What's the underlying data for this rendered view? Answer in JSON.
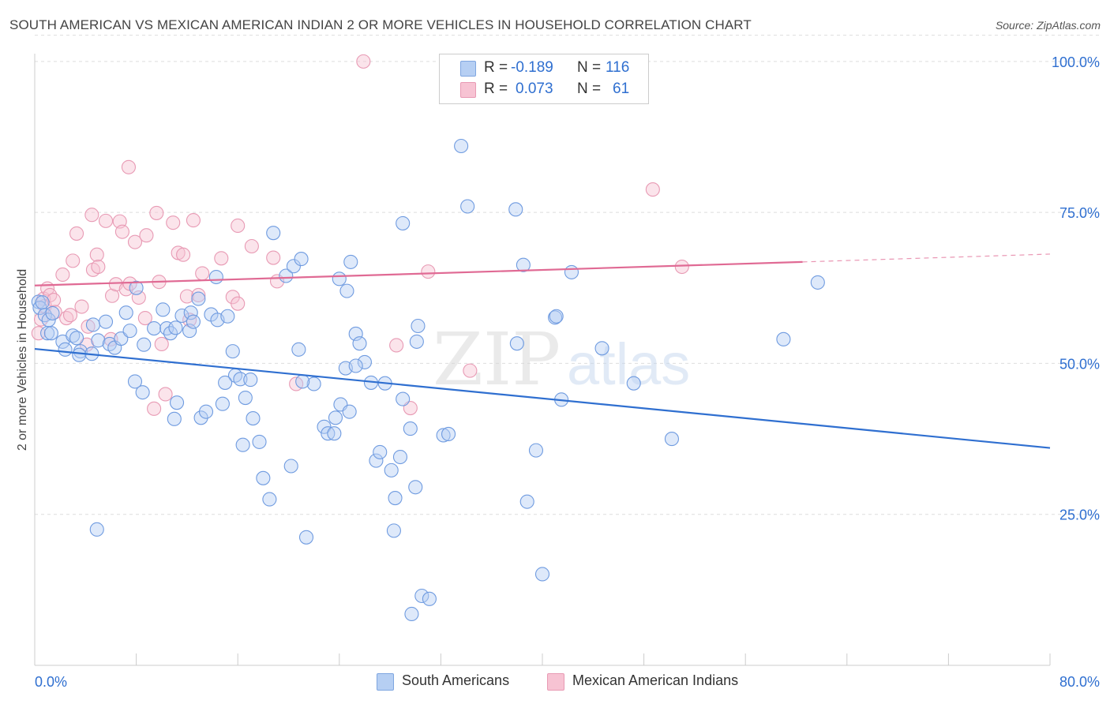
{
  "title": "SOUTH AMERICAN VS MEXICAN AMERICAN INDIAN 2 OR MORE VEHICLES IN HOUSEHOLD CORRELATION CHART",
  "source": "Source: ZipAtlas.com",
  "colors": {
    "blue": "#2f6fd0",
    "pink": "#e06a94",
    "blue_fill": "#b6cff3",
    "pink_fill": "#f7c3d3"
  },
  "legend": {
    "rows": [
      {
        "r_label": "R =",
        "r_value": "-0.189",
        "n_label": "N =",
        "n_value": "116"
      },
      {
        "r_label": "R =",
        "r_value": "0.073",
        "n_label": "N =",
        "n_value": "61"
      }
    ]
  },
  "watermark": {
    "part1": "ZIP",
    "part2": "atlas"
  },
  "chart_data": {
    "type": "scatter",
    "title": "SOUTH AMERICAN VS MEXICAN AMERICAN INDIAN 2 OR MORE VEHICLES IN HOUSEHOLD CORRELATION CHART",
    "xlabel": "",
    "ylabel": "2 or more Vehicles in Household",
    "xlim": [
      0,
      80
    ],
    "ylim": [
      0,
      105
    ],
    "x_tick_labels": [
      "0.0%",
      "80.0%"
    ],
    "y_ticks": [
      25,
      50,
      75,
      100
    ],
    "y_tick_labels": [
      "25.0%",
      "50.0%",
      "75.0%",
      "100.0%"
    ],
    "grid": true,
    "series": [
      {
        "name": "South Americans",
        "color": "#2f6fd0",
        "fill": "#b6cff3",
        "trend": {
          "x": [
            0,
            80
          ],
          "y": [
            52.4,
            36.0
          ]
        },
        "points": [
          [
            0.3,
            60.2
          ],
          [
            0.4,
            59.2
          ],
          [
            0.6,
            60.1
          ],
          [
            0.8,
            58.0
          ],
          [
            1.1,
            57.2
          ],
          [
            1.4,
            58.3
          ],
          [
            1.0,
            55.0
          ],
          [
            1.3,
            55.0
          ],
          [
            2.2,
            53.6
          ],
          [
            2.4,
            52.3
          ],
          [
            3.0,
            54.6
          ],
          [
            3.3,
            54.2
          ],
          [
            3.6,
            52.0
          ],
          [
            3.5,
            51.4
          ],
          [
            4.5,
            51.6
          ],
          [
            4.6,
            56.4
          ],
          [
            5.0,
            53.8
          ],
          [
            5.6,
            56.9
          ],
          [
            5.9,
            53.2
          ],
          [
            6.3,
            52.6
          ],
          [
            6.8,
            54.1
          ],
          [
            7.2,
            58.4
          ],
          [
            7.5,
            55.4
          ],
          [
            8.0,
            62.5
          ],
          [
            8.6,
            53.1
          ],
          [
            9.4,
            55.8
          ],
          [
            10.1,
            58.9
          ],
          [
            10.4,
            55.8
          ],
          [
            10.7,
            55.0
          ],
          [
            11.1,
            55.9
          ],
          [
            11.6,
            57.9
          ],
          [
            12.2,
            55.4
          ],
          [
            12.3,
            58.4
          ],
          [
            12.5,
            56.9
          ],
          [
            12.9,
            60.7
          ],
          [
            14.3,
            64.3
          ],
          [
            13.9,
            58.1
          ],
          [
            14.4,
            57.2
          ],
          [
            15.2,
            57.8
          ],
          [
            15.6,
            52.0
          ],
          [
            15.8,
            48.0
          ],
          [
            16.2,
            47.4
          ],
          [
            16.6,
            44.3
          ],
          [
            17.0,
            47.3
          ],
          [
            17.2,
            40.9
          ],
          [
            18.8,
            71.6
          ],
          [
            19.8,
            64.5
          ],
          [
            20.4,
            66.1
          ],
          [
            21.0,
            67.3
          ],
          [
            20.8,
            52.3
          ],
          [
            22.0,
            46.6
          ],
          [
            22.8,
            39.5
          ],
          [
            23.1,
            38.4
          ],
          [
            23.6,
            38.4
          ],
          [
            24.1,
            43.2
          ],
          [
            24.8,
            42.0
          ],
          [
            24.0,
            64.0
          ],
          [
            24.5,
            49.2
          ],
          [
            24.9,
            66.8
          ],
          [
            25.3,
            54.9
          ],
          [
            25.6,
            53.3
          ],
          [
            26.0,
            50.2
          ],
          [
            25.3,
            49.6
          ],
          [
            26.5,
            46.8
          ],
          [
            26.9,
            33.9
          ],
          [
            27.2,
            35.3
          ],
          [
            27.6,
            46.7
          ],
          [
            28.1,
            32.3
          ],
          [
            28.8,
            34.5
          ],
          [
            28.4,
            27.7
          ],
          [
            29.0,
            44.1
          ],
          [
            29.6,
            39.2
          ],
          [
            29.0,
            73.2
          ],
          [
            28.3,
            22.3
          ],
          [
            30.1,
            53.6
          ],
          [
            30.0,
            29.5
          ],
          [
            29.7,
            8.5
          ],
          [
            30.5,
            11.5
          ],
          [
            31.1,
            11.0
          ],
          [
            32.2,
            38.1
          ],
          [
            32.6,
            38.3
          ],
          [
            33.6,
            86.0
          ],
          [
            34.1,
            76.0
          ],
          [
            37.9,
            75.5
          ],
          [
            38.5,
            66.3
          ],
          [
            38.8,
            27.1
          ],
          [
            38.0,
            53.3
          ],
          [
            39.5,
            35.6
          ],
          [
            40.0,
            15.1
          ],
          [
            41.0,
            57.6
          ],
          [
            41.1,
            57.8
          ],
          [
            41.5,
            44.0
          ],
          [
            42.3,
            65.1
          ],
          [
            44.7,
            52.5
          ],
          [
            47.2,
            46.7
          ],
          [
            50.2,
            37.5
          ],
          [
            59.0,
            54.0
          ],
          [
            61.7,
            63.4
          ],
          [
            4.9,
            22.5
          ],
          [
            7.9,
            47.0
          ],
          [
            8.5,
            45.2
          ],
          [
            11.2,
            43.5
          ],
          [
            11.0,
            40.8
          ],
          [
            13.1,
            41.0
          ],
          [
            13.5,
            42.0
          ],
          [
            14.8,
            43.3
          ],
          [
            15.0,
            46.8
          ],
          [
            16.4,
            36.5
          ],
          [
            17.7,
            37.0
          ],
          [
            18.0,
            31.0
          ],
          [
            18.5,
            27.5
          ],
          [
            20.2,
            33.0
          ],
          [
            21.1,
            47.0
          ],
          [
            21.4,
            21.2
          ],
          [
            23.7,
            41.0
          ],
          [
            24.6,
            62.0
          ],
          [
            30.2,
            56.2
          ]
        ]
      },
      {
        "name": "Mexican American Indians",
        "color": "#e06a94",
        "fill": "#f7c3d3",
        "trend": {
          "x": [
            0,
            60.5
          ],
          "y": [
            62.9,
            66.8
          ]
        },
        "trend_dashed": {
          "x": [
            60.5,
            80
          ],
          "y": [
            66.8,
            68.1
          ]
        },
        "points": [
          [
            0.3,
            55.0
          ],
          [
            0.5,
            57.3
          ],
          [
            0.7,
            60.7
          ],
          [
            0.8,
            59.5
          ],
          [
            1.0,
            62.4
          ],
          [
            1.2,
            61.3
          ],
          [
            1.5,
            60.5
          ],
          [
            1.6,
            58.5
          ],
          [
            2.2,
            64.7
          ],
          [
            2.5,
            57.5
          ],
          [
            2.8,
            58.0
          ],
          [
            3.0,
            67.0
          ],
          [
            3.3,
            71.5
          ],
          [
            3.7,
            59.4
          ],
          [
            4.2,
            56.1
          ],
          [
            4.5,
            74.6
          ],
          [
            4.6,
            65.5
          ],
          [
            4.9,
            68.0
          ],
          [
            5.0,
            66.0
          ],
          [
            5.6,
            73.6
          ],
          [
            6.0,
            54.0
          ],
          [
            6.1,
            61.2
          ],
          [
            6.4,
            63.1
          ],
          [
            6.7,
            73.5
          ],
          [
            6.9,
            71.8
          ],
          [
            7.2,
            62.3
          ],
          [
            7.4,
            82.5
          ],
          [
            7.5,
            63.2
          ],
          [
            7.9,
            70.1
          ],
          [
            8.2,
            60.9
          ],
          [
            8.7,
            57.5
          ],
          [
            8.8,
            71.2
          ],
          [
            9.4,
            42.5
          ],
          [
            9.6,
            74.9
          ],
          [
            9.8,
            63.5
          ],
          [
            10.0,
            53.2
          ],
          [
            10.3,
            44.9
          ],
          [
            10.9,
            73.3
          ],
          [
            11.3,
            68.3
          ],
          [
            11.7,
            68.0
          ],
          [
            12.0,
            61.1
          ],
          [
            12.2,
            57.2
          ],
          [
            12.5,
            73.7
          ],
          [
            12.9,
            61.3
          ],
          [
            13.2,
            64.9
          ],
          [
            14.7,
            67.4
          ],
          [
            15.6,
            61.0
          ],
          [
            16.0,
            59.9
          ],
          [
            16.0,
            72.8
          ],
          [
            17.1,
            69.4
          ],
          [
            18.8,
            67.5
          ],
          [
            20.6,
            46.6
          ],
          [
            25.9,
            100.0
          ],
          [
            28.5,
            53.0
          ],
          [
            29.6,
            42.6
          ],
          [
            31.0,
            65.2
          ],
          [
            34.3,
            48.8
          ],
          [
            48.7,
            78.8
          ],
          [
            51.0,
            66.0
          ],
          [
            4.1,
            53.1
          ],
          [
            19.1,
            63.6
          ]
        ]
      }
    ]
  },
  "bottom_legend": [
    {
      "label": "South Americans"
    },
    {
      "label": "Mexican American Indians"
    }
  ]
}
